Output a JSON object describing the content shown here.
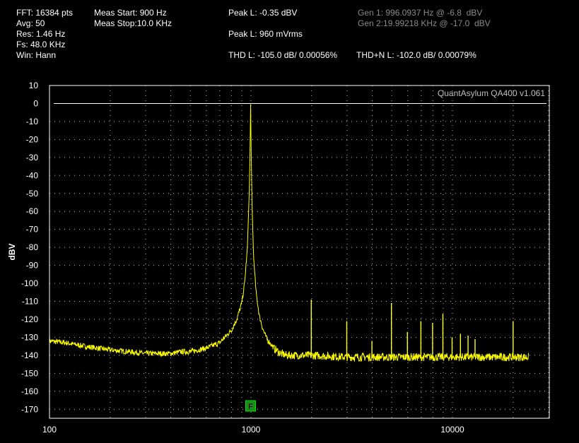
{
  "header": {
    "fft": "FFT: 16384 pts",
    "avg": "Avg: 50",
    "res": "Res: 1.46 Hz",
    "fs": "Fs: 48.0 KHz",
    "win": "Win: Hann",
    "meas_start": "Meas Start: 900 Hz",
    "meas_stop": "Meas Stop:10.0 KHz",
    "peak_dbv": "Peak L: -0.35 dBV",
    "peak_mvrms": "Peak L: 960 mVrms",
    "thd": "THD L: -105.0 dB/ 0.00056%",
    "thdn": "THD+N L: -102.0 dB/ 0.00079%",
    "gen1": "Gen 1: 996.0937 Hz @ -6.8  dBV",
    "gen2": "Gen 2:19.99218 KHz @ -17.0  dBV"
  },
  "brand": "QuantAsylum QA400 v1.061",
  "marker_label": "F",
  "colors": {
    "trace": "#ffff00",
    "grid": "#ffffff",
    "zero_line": "#ffffff",
    "marker_bg": "#1e8a1e",
    "marker_border": "#00e000"
  },
  "chart_data": {
    "type": "line",
    "x_scale": "log",
    "xlim": [
      100,
      24000
    ],
    "ylim": [
      -175,
      10
    ],
    "ylabel": "dBV",
    "xlabel": "",
    "grid": true,
    "x_ticks": [
      "100",
      "1000",
      "10000"
    ],
    "y_ticks": [
      "10",
      "0",
      "-10",
      "-20",
      "-30",
      "-40",
      "-50",
      "-60",
      "-70",
      "-80",
      "-90",
      "-100",
      "-110",
      "-120",
      "-130",
      "-140",
      "-150",
      "-160",
      "-170"
    ],
    "y_tick_values": [
      10,
      0,
      -10,
      -20,
      -30,
      -40,
      -50,
      -60,
      -70,
      -80,
      -90,
      -100,
      -110,
      -120,
      -130,
      -140,
      -150,
      -160,
      -170
    ],
    "marker_freq": 996,
    "series": [
      {
        "x": [
          100,
          120,
          150,
          200,
          250,
          300,
          350,
          400,
          450,
          500,
          600,
          700,
          800,
          850,
          900,
          930,
          960,
          980,
          990,
          996,
          1002,
          1012,
          1030,
          1060,
          1100,
          1150,
          1200,
          1300,
          1400,
          1500,
          2000,
          3000,
          5000,
          10000,
          15000,
          20000,
          24000
        ],
        "y": [
          -132,
          -133,
          -135,
          -137,
          -138,
          -139,
          -139,
          -139,
          -138,
          -138,
          -136,
          -133,
          -126,
          -120,
          -111,
          -100,
          -80,
          -50,
          -25,
          -0.35,
          -25,
          -55,
          -85,
          -105,
          -118,
          -126,
          -131,
          -136,
          -139,
          -140,
          -140,
          -141,
          -141,
          -141,
          -141,
          -141,
          -141
        ]
      }
    ],
    "harmonics": [
      {
        "x": 1992,
        "y": -109
      },
      {
        "x": 2988,
        "y": -121
      },
      {
        "x": 3984,
        "y": -132
      },
      {
        "x": 4980,
        "y": -111
      },
      {
        "x": 5976,
        "y": -127
      },
      {
        "x": 6972,
        "y": -121
      },
      {
        "x": 7968,
        "y": -122
      },
      {
        "x": 8964,
        "y": -117
      },
      {
        "x": 9960,
        "y": -130
      },
      {
        "x": 10956,
        "y": -128
      },
      {
        "x": 11952,
        "y": -129
      },
      {
        "x": 12948,
        "y": -131
      },
      {
        "x": 20000,
        "y": -121
      }
    ]
  }
}
